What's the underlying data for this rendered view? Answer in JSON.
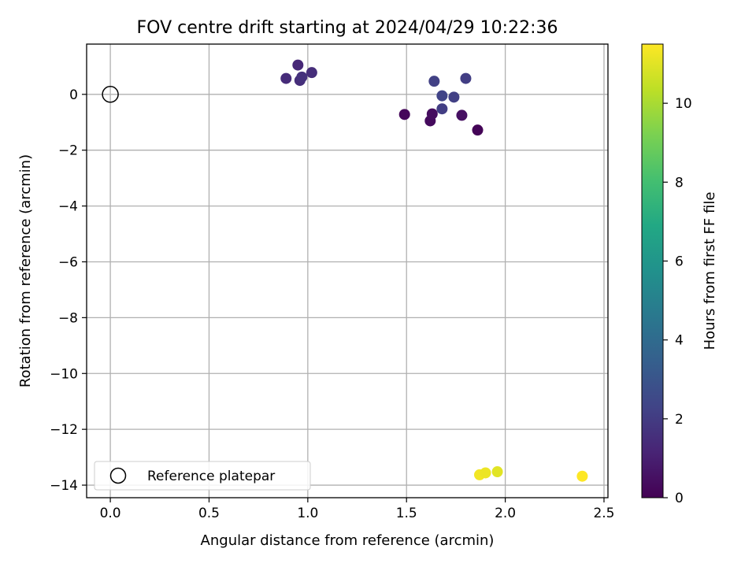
{
  "chart_data": {
    "type": "scatter",
    "title": "FOV centre drift starting at 2024/04/29 10:22:36",
    "xlabel": "Angular distance from reference (arcmin)",
    "ylabel": "Rotation from reference (arcmin)",
    "xlim": [
      -0.12,
      2.52
    ],
    "ylim": [
      -14.45,
      1.8
    ],
    "xticks": [
      0.0,
      0.5,
      1.0,
      1.5,
      2.0,
      2.5
    ],
    "xtick_labels": [
      "0.0",
      "0.5",
      "1.0",
      "1.5",
      "2.0",
      "2.5"
    ],
    "yticks": [
      0,
      -2,
      -4,
      -6,
      -8,
      -10,
      -12,
      -14
    ],
    "ytick_labels": [
      "0",
      "−2",
      "−4",
      "−6",
      "−8",
      "−10",
      "−12",
      "−14"
    ],
    "grid": true,
    "colormap": "viridis",
    "colorbar": {
      "label": "Hours from first FF file",
      "range": [
        0,
        11.5
      ],
      "ticks": [
        0,
        2,
        4,
        6,
        8,
        10
      ],
      "tick_labels": [
        "0",
        "2",
        "4",
        "6",
        "8",
        "10"
      ]
    },
    "legend": {
      "position": "lower-left",
      "entries": [
        {
          "label": "Reference platepar",
          "marker": "open-circle"
        }
      ]
    },
    "reference_point": {
      "x": 0.0,
      "y": 0.0
    },
    "points": [
      {
        "x": 1.49,
        "y": -0.72,
        "hours": 0.2
      },
      {
        "x": 1.62,
        "y": -0.95,
        "hours": 0.3
      },
      {
        "x": 1.63,
        "y": -0.7,
        "hours": 0.4
      },
      {
        "x": 1.78,
        "y": -0.75,
        "hours": 0.5
      },
      {
        "x": 1.86,
        "y": -1.28,
        "hours": 0.1
      },
      {
        "x": 0.95,
        "y": 1.05,
        "hours": 1.3
      },
      {
        "x": 0.89,
        "y": 0.57,
        "hours": 1.4
      },
      {
        "x": 0.96,
        "y": 0.5,
        "hours": 1.5
      },
      {
        "x": 0.97,
        "y": 0.62,
        "hours": 1.6
      },
      {
        "x": 1.02,
        "y": 0.78,
        "hours": 1.5
      },
      {
        "x": 1.64,
        "y": 0.47,
        "hours": 2.2
      },
      {
        "x": 1.68,
        "y": -0.05,
        "hours": 2.3
      },
      {
        "x": 1.68,
        "y": -0.52,
        "hours": 2.1
      },
      {
        "x": 1.74,
        "y": -0.1,
        "hours": 2.2
      },
      {
        "x": 1.8,
        "y": 0.57,
        "hours": 2.1
      },
      {
        "x": 1.87,
        "y": -13.63,
        "hours": 11.3
      },
      {
        "x": 1.9,
        "y": -13.56,
        "hours": 11.2
      },
      {
        "x": 1.96,
        "y": -13.52,
        "hours": 11.0
      },
      {
        "x": 2.39,
        "y": -13.68,
        "hours": 11.5
      }
    ]
  }
}
